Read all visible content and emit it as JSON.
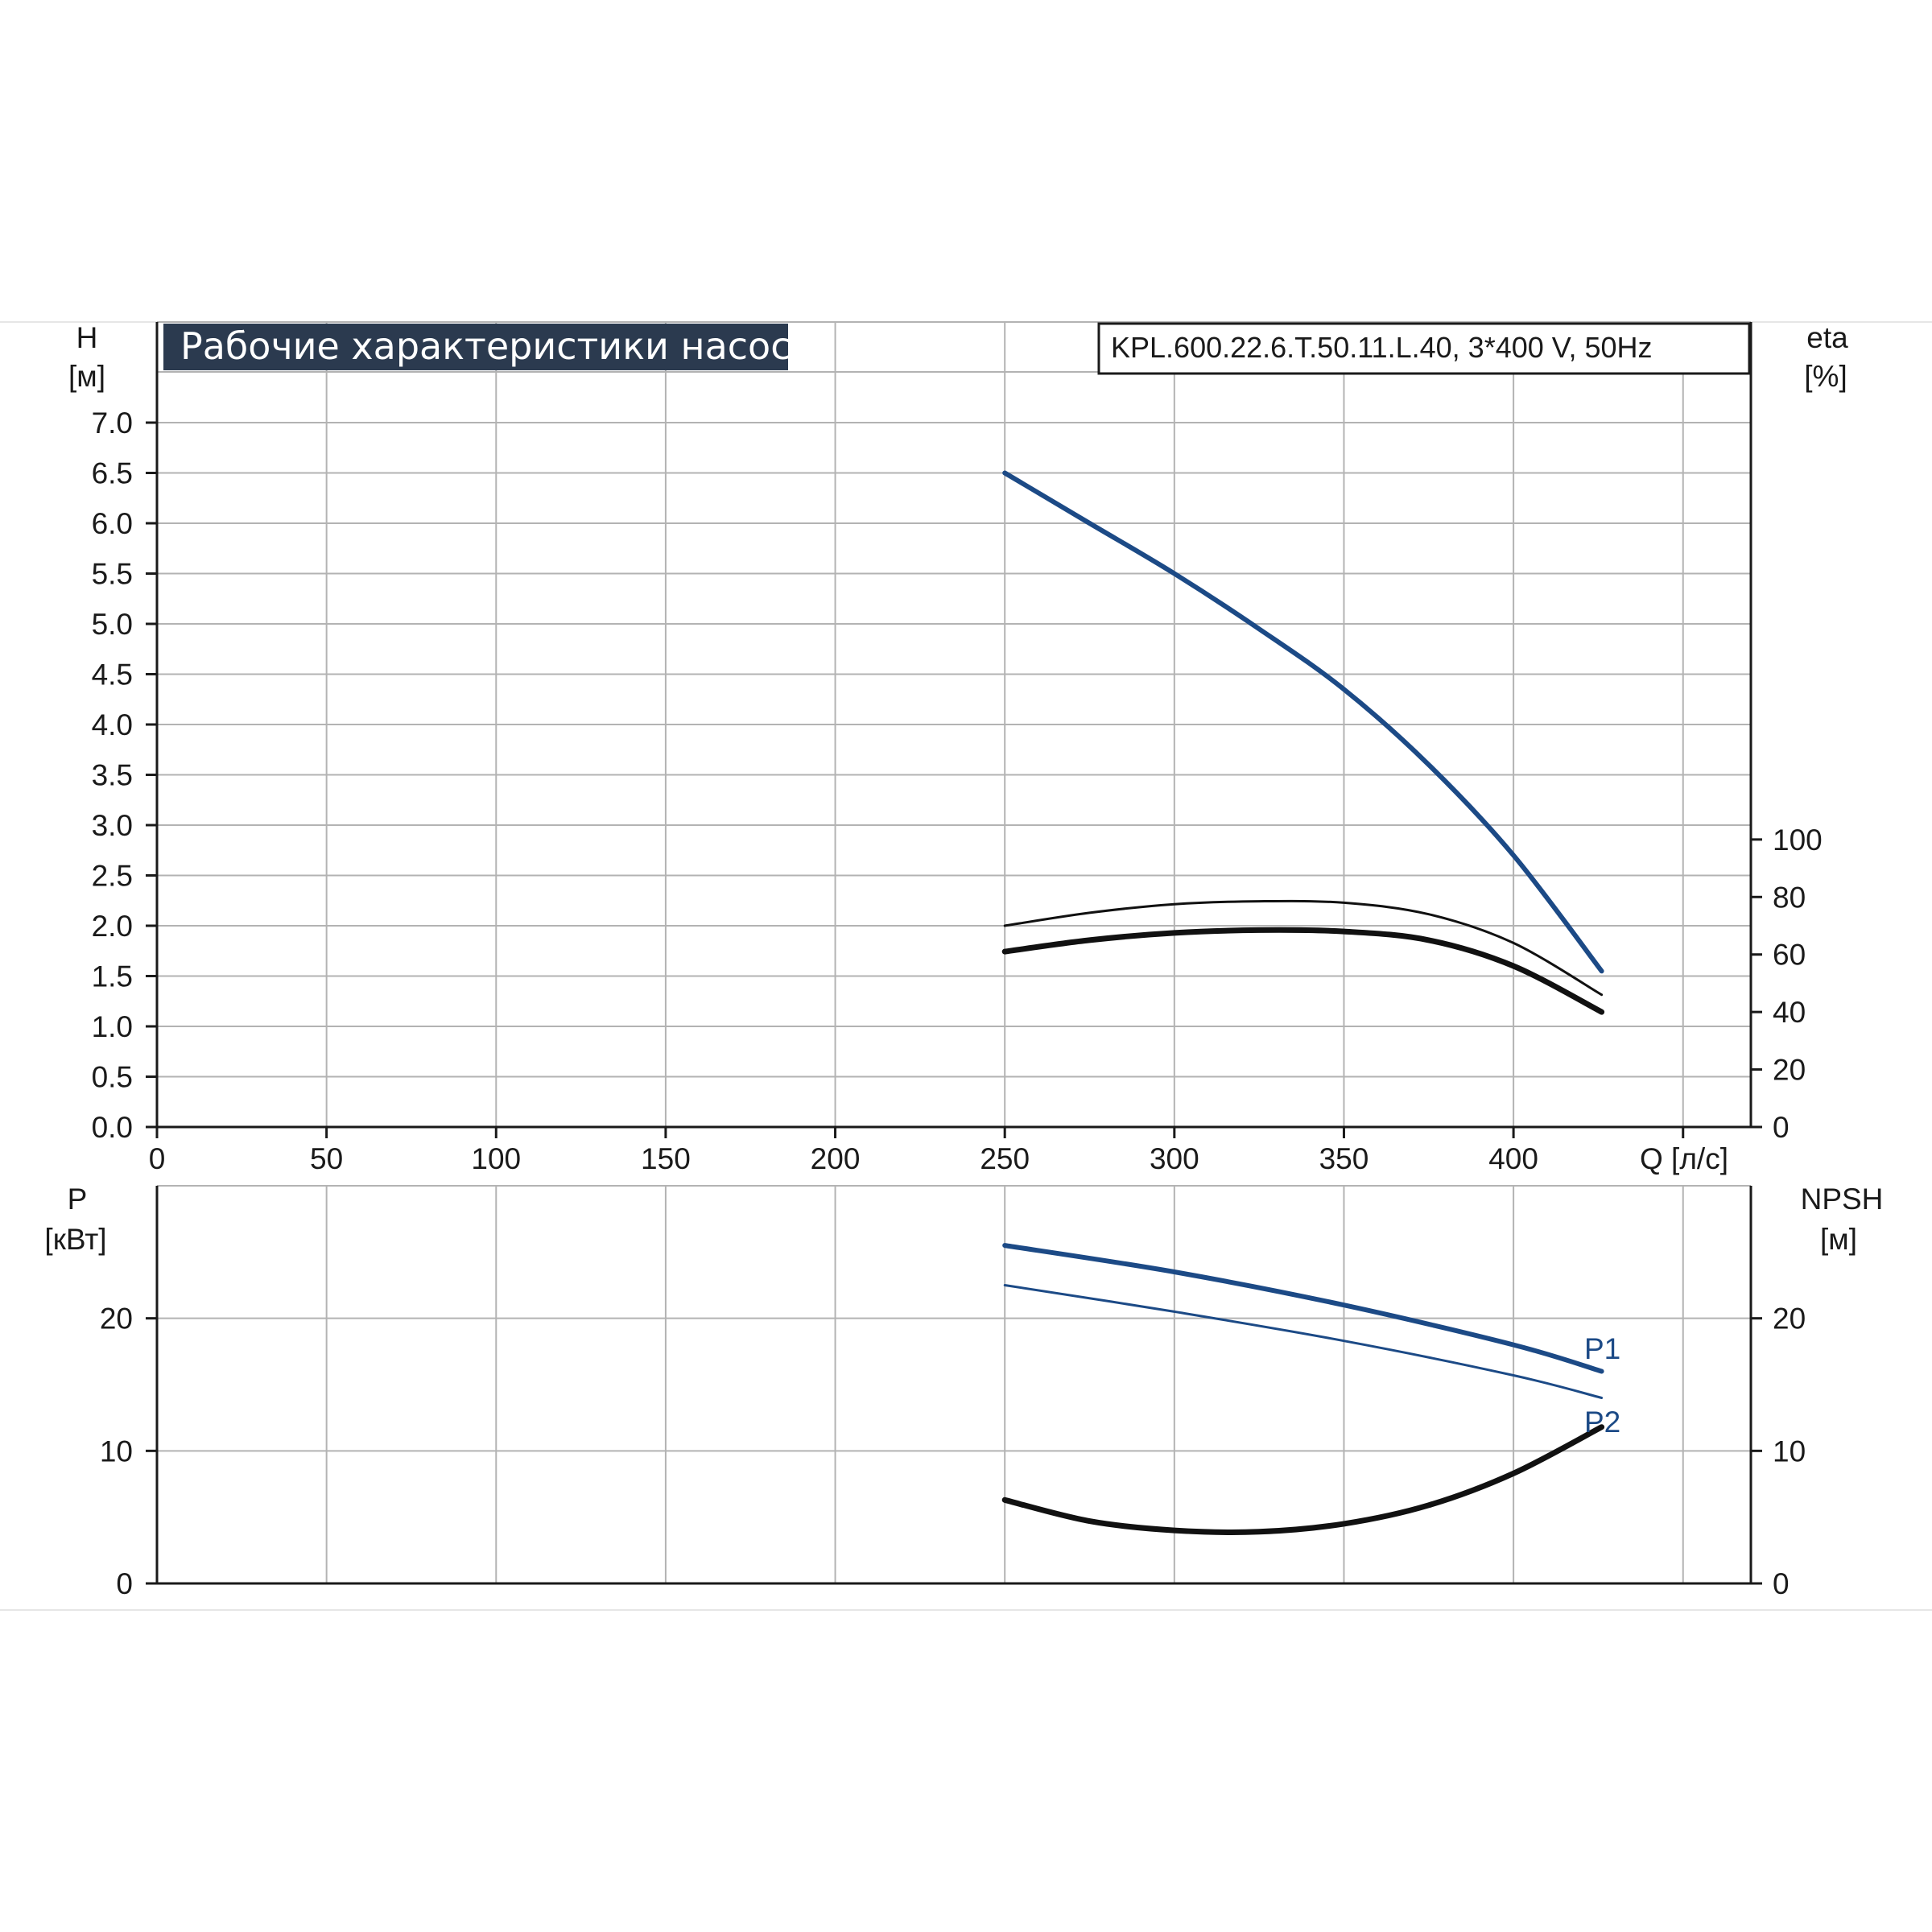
{
  "chart_data": [
    {
      "type": "line",
      "title": "Рабочие характеристики насоса",
      "model": "KPL.600.22.6.T.50.11.L.40, 3*400 V, 50Hz",
      "xlabel": "Q [л/с]",
      "xlim": [
        0,
        470
      ],
      "x_ticks": [
        "0",
        "50",
        "100",
        "150",
        "200",
        "250",
        "300",
        "350",
        "400"
      ],
      "ylabel_left": "H",
      "ylabel_left_unit": "[м]",
      "ylim_left": [
        0,
        7.0
      ],
      "y_ticks_left": [
        "0.0",
        "0.5",
        "1.0",
        "1.5",
        "2.0",
        "2.5",
        "3.0",
        "3.5",
        "4.0",
        "4.5",
        "5.0",
        "5.5",
        "6.0",
        "6.5",
        "7.0"
      ],
      "ylabel_right": "eta",
      "ylabel_right_unit": "[%]",
      "ylim_right": [
        0,
        280
      ],
      "y_ticks_right": [
        "0",
        "20",
        "40",
        "60",
        "80",
        "100"
      ],
      "grid": true,
      "series": [
        {
          "name": "H",
          "axis": "left",
          "color": "#1c4a86",
          "x": [
            250,
            275,
            300,
            325,
            350,
            375,
            400,
            426
          ],
          "y": [
            6.5,
            6.0,
            5.5,
            4.95,
            4.35,
            3.6,
            2.7,
            1.55
          ]
        },
        {
          "name": "eta",
          "axis": "right",
          "color": "#111111",
          "x": [
            250,
            275,
            300,
            325,
            350,
            375,
            400,
            426
          ],
          "y": [
            70,
            74.5,
            77.5,
            78.5,
            78,
            74,
            64,
            46
          ]
        },
        {
          "name": "eta",
          "axis": "right",
          "color": "#111111",
          "x": [
            250,
            275,
            300,
            325,
            350,
            375,
            400,
            426
          ],
          "y": [
            61,
            65,
            67.5,
            68.5,
            68,
            65,
            56,
            40
          ]
        }
      ]
    },
    {
      "type": "line",
      "ylabel_left": "P",
      "ylabel_left_unit": "[кВт]",
      "ylim_left": [
        0,
        30
      ],
      "y_ticks_left": [
        "0",
        "10",
        "20"
      ],
      "ylabel_right": "NPSH",
      "ylabel_right_unit": "[м]",
      "ylim_right": [
        0,
        30
      ],
      "y_ticks_right": [
        "0",
        "10",
        "20"
      ],
      "xlim": [
        0,
        470
      ],
      "grid": true,
      "series": [
        {
          "name": "P1",
          "axis": "left",
          "color": "#1c4a86",
          "x": [
            250,
            300,
            350,
            400,
            426
          ],
          "y": [
            25.5,
            23.5,
            21,
            18,
            16
          ]
        },
        {
          "name": "P2",
          "axis": "left",
          "color": "#1c4a86",
          "x": [
            250,
            300,
            350,
            400,
            426
          ],
          "y": [
            22.5,
            20.5,
            18.3,
            15.7,
            14
          ]
        },
        {
          "name": "NPSH",
          "axis": "right",
          "color": "#111111",
          "x": [
            250,
            275,
            300,
            325,
            350,
            375,
            400,
            426
          ],
          "y": [
            6.3,
            4.7,
            4.0,
            3.9,
            4.5,
            5.9,
            8.3,
            11.8
          ]
        }
      ]
    }
  ]
}
